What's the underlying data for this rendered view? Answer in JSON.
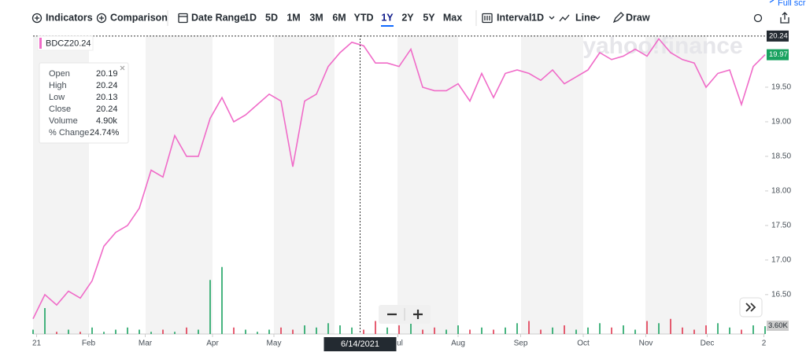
{
  "toolbar": {
    "indicators": "Indicators",
    "comparison": "Comparison",
    "date_range": "Date Range",
    "ranges": [
      "1D",
      "5D",
      "1M",
      "3M",
      "6M",
      "YTD",
      "1Y",
      "2Y",
      "5Y",
      "Max"
    ],
    "active_range": 6,
    "interval": "Interval",
    "interval_value": "1D",
    "line": "Line",
    "draw": "Draw",
    "full_screen": "Full screen"
  },
  "chart_data": {
    "type": "line",
    "symbol": "BDCZ",
    "color": "#f06bc8",
    "watermark": "yahoo!finance",
    "x": [
      0,
      1,
      2,
      3,
      4,
      5,
      6,
      7,
      8,
      9,
      10,
      11,
      12,
      13,
      14,
      15,
      16,
      17,
      18,
      19,
      20,
      21,
      22,
      23,
      24,
      25,
      26,
      27,
      28,
      29,
      30,
      31,
      32,
      33,
      34,
      35,
      36,
      37,
      38,
      39,
      40,
      41,
      42,
      43,
      44,
      45,
      46,
      47,
      48,
      49,
      50,
      51,
      52,
      53,
      54,
      55,
      56,
      57,
      58,
      59,
      60,
      61,
      62
    ],
    "values": [
      16.15,
      16.5,
      16.35,
      16.55,
      16.45,
      16.7,
      17.2,
      17.4,
      17.5,
      17.75,
      18.3,
      18.2,
      18.8,
      18.5,
      18.5,
      19.05,
      19.35,
      19.0,
      19.1,
      19.25,
      19.4,
      19.3,
      18.35,
      19.3,
      19.4,
      19.8,
      20.0,
      20.15,
      20.1,
      19.85,
      19.85,
      19.8,
      20.05,
      19.5,
      19.45,
      19.45,
      19.55,
      19.3,
      19.7,
      19.35,
      19.7,
      19.75,
      19.7,
      19.6,
      19.75,
      19.55,
      19.65,
      19.75,
      20.0,
      19.9,
      19.95,
      20.05,
      19.95,
      20.2,
      20.0,
      19.9,
      19.85,
      19.5,
      19.7,
      19.75,
      19.25,
      19.8,
      19.97
    ],
    "volume": [
      2,
      12,
      1,
      2,
      1,
      3,
      1,
      2,
      3,
      2,
      1,
      2,
      1,
      3,
      2,
      25,
      31,
      3,
      2,
      1,
      2,
      3,
      2,
      4,
      3,
      5,
      4,
      3,
      2,
      6,
      3,
      4,
      5,
      2,
      3,
      2,
      4,
      2,
      3,
      2,
      3,
      5,
      6,
      2,
      3,
      4,
      2,
      3,
      5,
      3,
      4,
      2,
      6,
      5,
      7,
      3,
      2,
      4,
      5,
      3,
      2,
      4,
      3.6
    ],
    "volume_lim": [
      0,
      40
    ],
    "volume_readout": "3.60K",
    "xlim": [
      0,
      62
    ],
    "ylim": [
      15.93,
      20.25
    ],
    "yticks": [
      {
        "value": 16.5,
        "label": "16.50"
      },
      {
        "value": 17,
        "label": "17.00"
      },
      {
        "value": 17.5,
        "label": "17.50"
      },
      {
        "value": 18,
        "label": "18.00"
      },
      {
        "value": 18.5,
        "label": "18.50"
      },
      {
        "value": 19,
        "label": "19.00"
      },
      {
        "value": 19.5,
        "label": "19.50"
      }
    ],
    "xticks": [
      {
        "value": 0.3,
        "label": "21"
      },
      {
        "value": 4.7,
        "label": "Feb"
      },
      {
        "value": 9.5,
        "label": "Mar"
      },
      {
        "value": 15.2,
        "label": "Apr"
      },
      {
        "value": 20.4,
        "label": "May"
      },
      {
        "value": 30.9,
        "label": "Jul"
      },
      {
        "value": 36,
        "label": "Aug"
      },
      {
        "value": 41.3,
        "label": "Sep"
      },
      {
        "value": 46.6,
        "label": "Oct"
      },
      {
        "value": 51.9,
        "label": "Nov"
      },
      {
        "value": 57.1,
        "label": "Dec"
      },
      {
        "value": 61.9,
        "label": "2"
      }
    ],
    "crosshair_x": 27.7,
    "crosshair_date": "6/14/2021",
    "crosshair_price": 20.24,
    "last_price": 19.97,
    "legend_price": "20.24",
    "tooltip": [
      [
        "Open",
        "20.19"
      ],
      [
        "High",
        "20.24"
      ],
      [
        "Low",
        "20.13"
      ],
      [
        "Close",
        "20.24"
      ],
      [
        "Volume",
        "4.90k"
      ],
      [
        "% Change",
        "24.74%"
      ]
    ]
  }
}
